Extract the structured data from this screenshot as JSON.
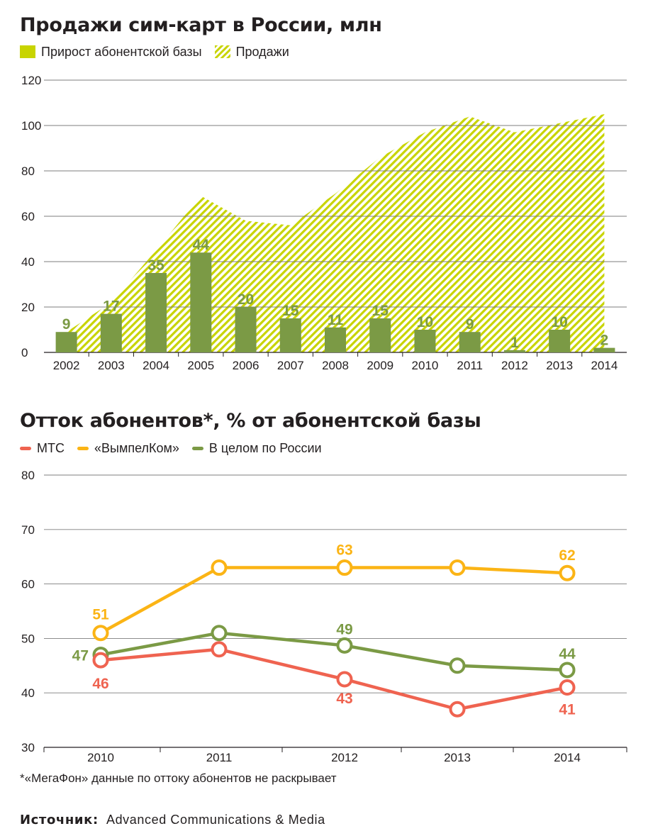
{
  "chart_data": [
    {
      "type": "bar",
      "title": "Продажи сим-карт в России, млн",
      "legend": [
        "Прирост абонентской базы",
        "Продажи"
      ],
      "categories": [
        "2002",
        "2003",
        "2004",
        "2005",
        "2006",
        "2007",
        "2008",
        "2009",
        "2010",
        "2011",
        "2012",
        "2013",
        "2014"
      ],
      "series": [
        {
          "name": "Прирост абонентской базы",
          "type": "bar",
          "values": [
            9,
            17,
            35,
            44,
            20,
            15,
            11,
            15,
            10,
            9,
            1,
            10,
            2
          ],
          "labels": [
            "9",
            "17",
            "35",
            "44",
            "20",
            "15",
            "11",
            "15",
            "10",
            "9",
            "1",
            "10",
            "2"
          ]
        },
        {
          "name": "Продажи",
          "type": "area",
          "values": [
            9,
            22,
            45,
            69,
            58,
            56,
            70,
            86,
            97,
            104,
            97,
            101,
            105
          ]
        }
      ],
      "yticks": [
        "0",
        "20",
        "40",
        "60",
        "80",
        "100",
        "120"
      ],
      "ylim": [
        0,
        120
      ],
      "grid": true,
      "colors": {
        "bar": "#7b9a45",
        "area": "#c8d400",
        "bar_label": "#7b9a45"
      }
    },
    {
      "type": "line",
      "title": "Отток абонентов*, % от абонентской базы",
      "legend": [
        "МТС",
        "«ВымпелКом»",
        "В целом по России"
      ],
      "categories": [
        "2010",
        "2011",
        "2012",
        "2013",
        "2014"
      ],
      "series": [
        {
          "name": "МТС",
          "color": "#ef6350",
          "values": [
            46,
            48,
            42.5,
            37,
            41
          ],
          "labels": [
            "46",
            "",
            "43",
            "",
            "41"
          ]
        },
        {
          "name": "«ВымпелКом»",
          "color": "#fbb415",
          "values": [
            51,
            63,
            63,
            63,
            62
          ],
          "labels": [
            "51",
            "",
            "63",
            "",
            "62"
          ]
        },
        {
          "name": "В целом по России",
          "color": "#7b9a45",
          "values": [
            47,
            51,
            48.7,
            45,
            44.2
          ],
          "labels": [
            "47",
            "",
            "49",
            "",
            "44"
          ]
        }
      ],
      "yticks": [
        "30",
        "40",
        "50",
        "60",
        "70",
        "80"
      ],
      "ylim": [
        30,
        80
      ],
      "grid": true
    }
  ],
  "footnote": "*«МегаФон» данные по оттоку абонентов не раскрывает",
  "source_label": "Источник:",
  "source_text": "Advanced Communications & Media"
}
